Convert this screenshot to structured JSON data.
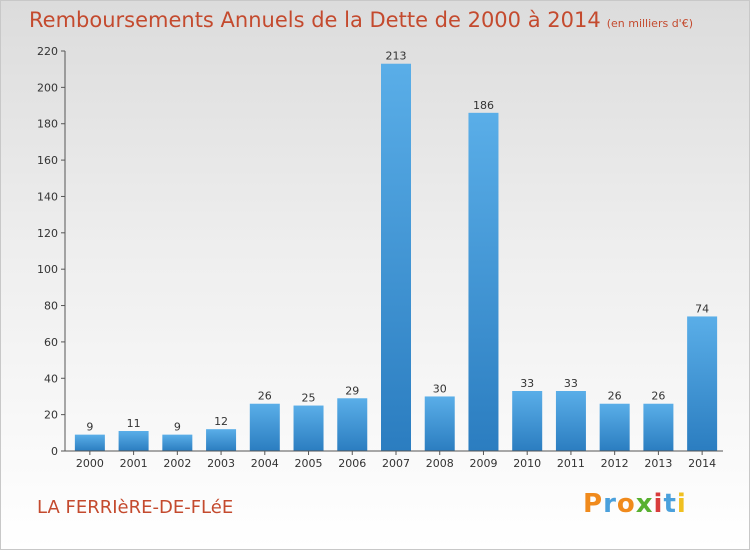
{
  "header": {
    "title": "Remboursements Annuels de la Dette de 2000 à 2014",
    "unit": "(en milliers d'€)"
  },
  "footer": {
    "commune": "LA FERRIèRE-DE-FLéE",
    "logo": "Proxiti"
  },
  "colors": {
    "title": "#c44a2e",
    "bar_light": "#5aaee8",
    "bar_dark": "#2b7dc0",
    "logo": [
      "#f08a1c",
      "#4aa0dc",
      "#f08a1c",
      "#58b030",
      "#d83c3c",
      "#4aa0dc",
      "#f0c020"
    ]
  },
  "chart_data": {
    "type": "bar",
    "categories": [
      "2000",
      "2001",
      "2002",
      "2003",
      "2004",
      "2005",
      "2006",
      "2007",
      "2008",
      "2009",
      "2010",
      "2011",
      "2012",
      "2013",
      "2014"
    ],
    "values": [
      9,
      11,
      9,
      12,
      26,
      25,
      29,
      213,
      30,
      186,
      33,
      33,
      26,
      26,
      74
    ],
    "title": "Remboursements Annuels de la Dette de 2000 à 2014",
    "xlabel": "",
    "ylabel": "",
    "ylim": [
      0,
      220
    ],
    "yticks": [
      0,
      20,
      40,
      60,
      80,
      100,
      120,
      140,
      160,
      180,
      200,
      220
    ],
    "grid": false,
    "legend": "none"
  }
}
